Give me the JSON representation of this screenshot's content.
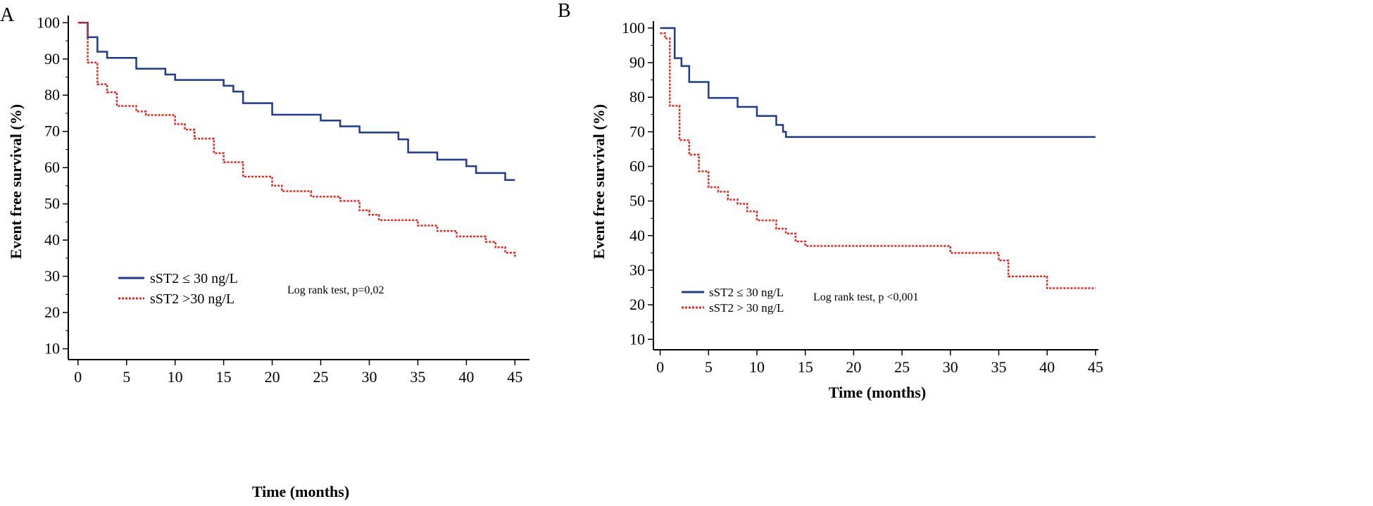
{
  "chart_data": [
    {
      "type": "line",
      "step": true,
      "panel_label": "A",
      "xlabel": "Time (months)",
      "ylabel": "Event free survival (%)",
      "xlim": [
        -1,
        46.5
      ],
      "ylim": [
        7,
        102
      ],
      "xticks": [
        0,
        5,
        10,
        15,
        20,
        25,
        30,
        35,
        40,
        45
      ],
      "yticks": [
        10,
        20,
        30,
        40,
        50,
        60,
        70,
        80,
        90,
        100
      ],
      "xtick_labels": [
        "0",
        "5",
        "10",
        "15",
        "20",
        "25",
        "30",
        "35",
        "40",
        "45"
      ],
      "ytick_labels": [
        "10",
        "20",
        "30",
        "40",
        "50",
        "60",
        "70",
        "80",
        "90",
        "100"
      ],
      "annotation": "Log rank test, p=0,02",
      "legend": [
        "sST2 ≤ 30 ng/L",
        "sST2 >30 ng/L"
      ],
      "series": [
        {
          "name": "sST2 ≤ 30 ng/L",
          "color": "#1f3a93",
          "dash": "solid",
          "x": [
            0,
            1,
            2,
            3,
            6,
            9,
            10,
            15,
            16,
            17,
            20,
            25,
            27,
            29,
            33,
            34,
            37,
            40,
            41,
            44,
            45
          ],
          "y": [
            100,
            96,
            92,
            90.3,
            87.3,
            85.7,
            84.2,
            82.6,
            81,
            77.8,
            74.6,
            73,
            71.4,
            69.7,
            67.8,
            64.2,
            62.2,
            60.4,
            58.5,
            56.6,
            56.6
          ]
        },
        {
          "name": "sST2 >30 ng/L",
          "color": "#e8241c",
          "dash": "dotted",
          "x": [
            0,
            1,
            2,
            3,
            4,
            6,
            7,
            10,
            11,
            12,
            14,
            15,
            17,
            20,
            21,
            24,
            27,
            29,
            30,
            31,
            35,
            37,
            39,
            42,
            43,
            44,
            45
          ],
          "y": [
            100,
            89,
            83,
            80.8,
            77,
            75.5,
            74.5,
            72,
            70.5,
            68,
            64,
            61.5,
            57.5,
            55,
            53.5,
            52,
            50.8,
            48.2,
            47,
            45.5,
            44,
            42.5,
            41,
            39.5,
            38,
            36.5,
            35
          ]
        }
      ]
    },
    {
      "type": "line",
      "step": true,
      "panel_label": "B",
      "xlabel": "Time (months)",
      "ylabel": "Event free survival (%)",
      "xlim": [
        -0.7,
        45.3
      ],
      "ylim": [
        7,
        102
      ],
      "xticks": [
        0,
        5,
        10,
        15,
        20,
        25,
        30,
        35,
        40,
        45
      ],
      "yticks": [
        10,
        20,
        30,
        40,
        50,
        60,
        70,
        80,
        90,
        100
      ],
      "xtick_labels": [
        "0",
        "5",
        "10",
        "15",
        "20",
        "25",
        "30",
        "35",
        "40",
        "45"
      ],
      "ytick_labels": [
        "10",
        "20",
        "30",
        "40",
        "50",
        "60",
        "70",
        "80",
        "90",
        "100"
      ],
      "annotation": "Log rank test, p <0,001",
      "legend": [
        "sST2 ≤ 30 ng/L",
        "sST2 > 30 ng/L"
      ],
      "series": [
        {
          "name": "sST2 ≤ 30 ng/L",
          "color": "#1f3a93",
          "dash": "solid",
          "x": [
            0,
            1.5,
            2.2,
            3,
            5,
            8,
            10,
            12,
            12.7,
            13,
            45
          ],
          "y": [
            100,
            91.3,
            89,
            84.4,
            79.8,
            77.2,
            74.6,
            72,
            70,
            68.5,
            68.5
          ]
        },
        {
          "name": "sST2 > 30 ng/L",
          "color": "#e8241c",
          "dash": "dotted",
          "x": [
            0,
            0.5,
            1,
            2,
            3,
            4,
            5,
            6,
            7,
            8,
            9,
            10,
            12,
            13,
            14,
            15,
            30,
            35,
            36,
            40,
            45
          ],
          "y": [
            98.5,
            97,
            77.5,
            67.6,
            63.4,
            58.6,
            54,
            52.7,
            50.4,
            49.2,
            47,
            44.4,
            42,
            40.6,
            38.3,
            37,
            35,
            32.8,
            28.2,
            24.8,
            24.8
          ]
        }
      ]
    }
  ]
}
